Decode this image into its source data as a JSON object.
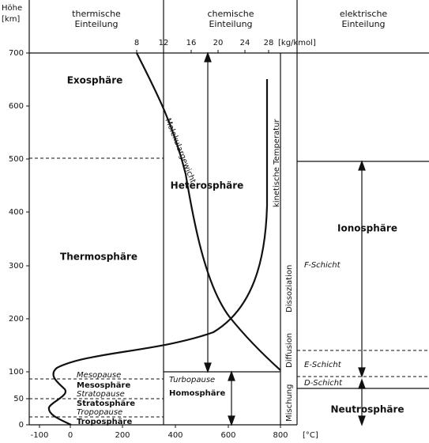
{
  "header": {
    "height_label": "Höhe",
    "height_unit": "[km]",
    "columns": [
      "thermische Einteilung",
      "chemische Einteilung",
      "elektrische Einteilung"
    ]
  },
  "axes": {
    "height_ticks": [
      "0",
      "50",
      "100",
      "200",
      "300",
      "400",
      "500",
      "600",
      "700"
    ],
    "temperature_ticks": [
      "-100",
      "0",
      "200",
      "400",
      "600",
      "800"
    ],
    "temperature_unit": "[°C]",
    "weight_ticks": [
      "8",
      "12",
      "16",
      "20",
      "24",
      "28"
    ],
    "weight_unit": "[kg/kmol]"
  },
  "thermal": {
    "layers": [
      "Exosphäre",
      "Thermosphäre",
      "Mesosphäre",
      "Stratosphäre",
      "Troposphäre"
    ],
    "boundaries": [
      "Mesopause",
      "Stratopause",
      "Tropopause"
    ]
  },
  "chemical": {
    "layers": [
      "Heterosphäre",
      "Homosphäre"
    ],
    "boundary": "Turbopause",
    "curves": [
      "Molekulargewicht",
      "kinetische Temperatur"
    ],
    "processes": [
      "Dissoziation",
      "Diffusion",
      "Mischung"
    ]
  },
  "electrical": {
    "layers": [
      "Ionosphäre",
      "Neutrosphäre"
    ],
    "sublayers": [
      "F-Schicht",
      "E-Schicht",
      "D-Schicht"
    ]
  }
}
